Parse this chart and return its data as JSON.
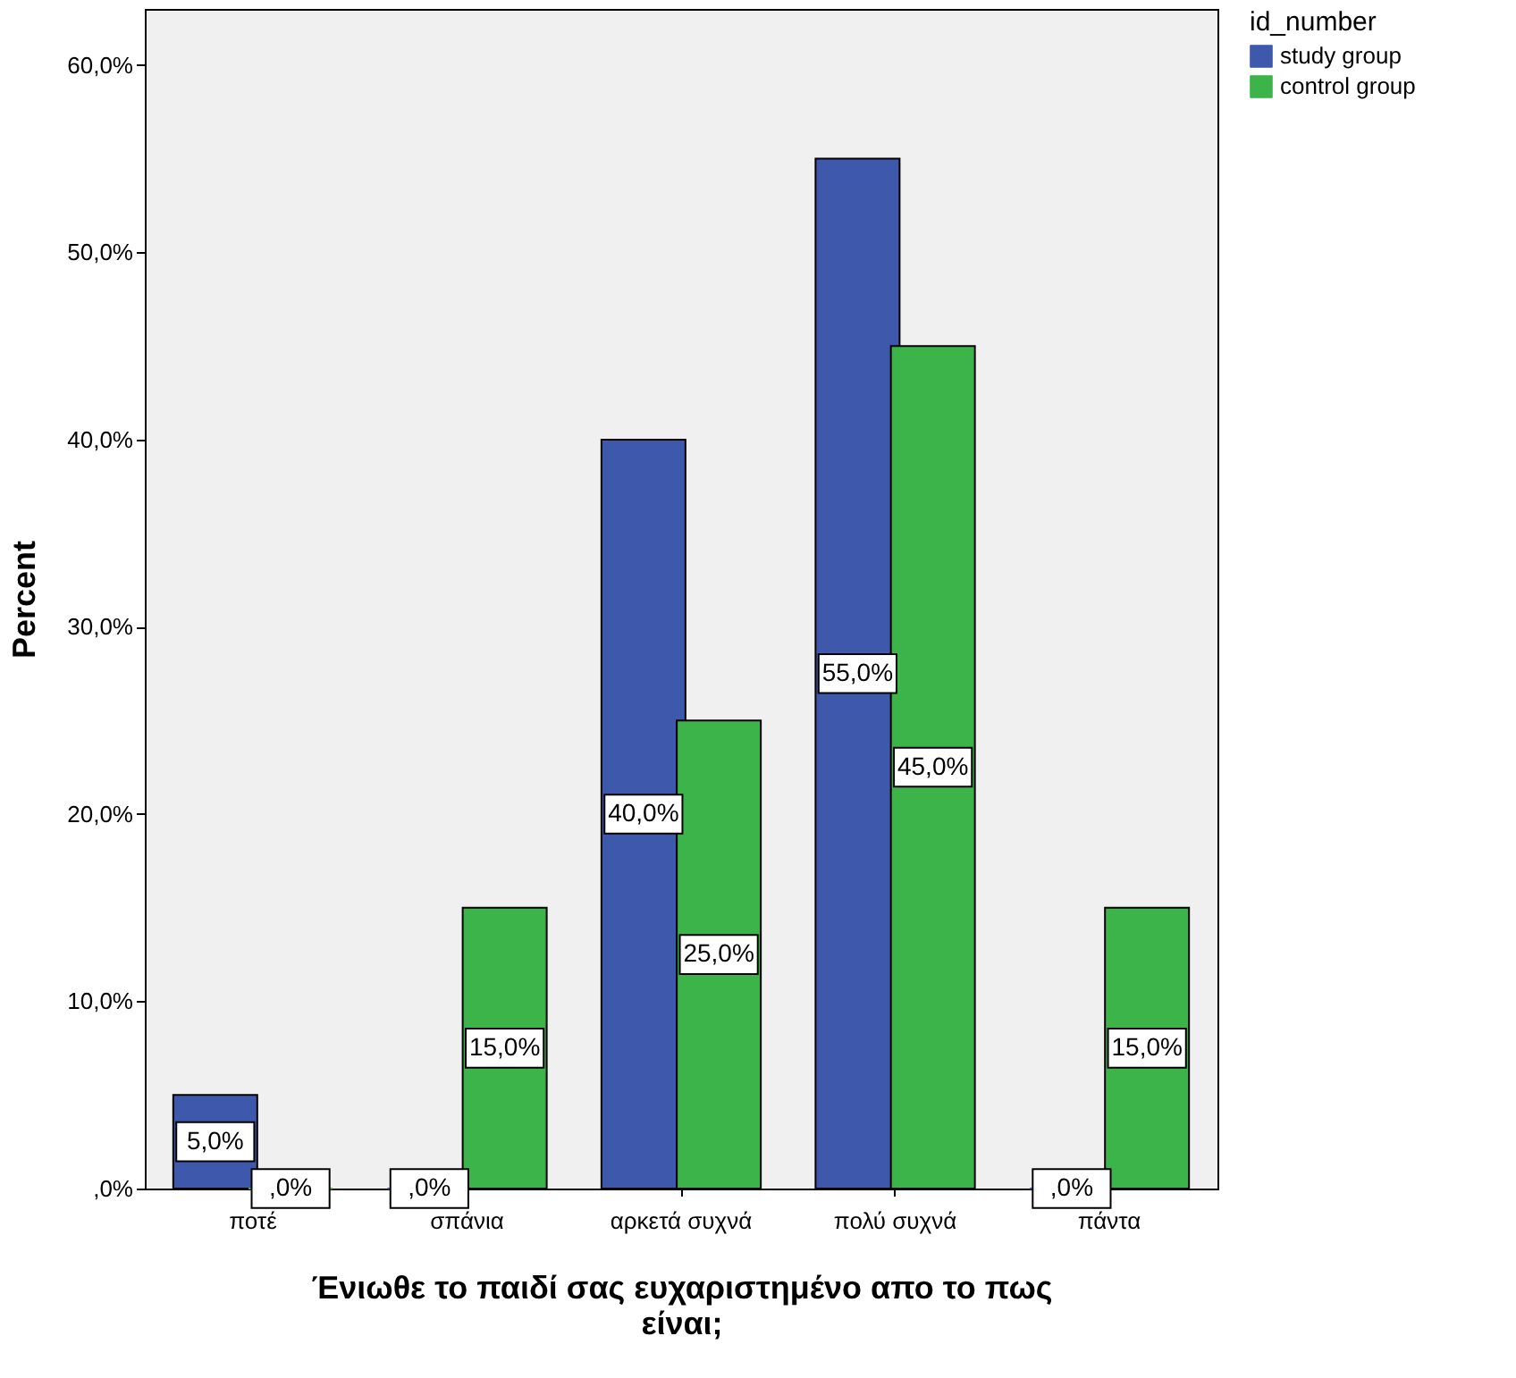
{
  "chart_data": {
    "type": "bar",
    "xlabel": "Ένιωθε το παιδί σας ευχαριστημένο απο το πως είναι;",
    "ylabel": "Percent",
    "legend_title": "id_number",
    "categories": [
      "ποτέ",
      "σπάνια",
      "αρκετά συχνά",
      "πολύ συχνά",
      "πάντα"
    ],
    "series": [
      {
        "name": "study group",
        "color": "#3e58ac",
        "values": [
          5,
          0,
          40,
          55,
          0
        ],
        "value_labels": [
          "5,0%",
          ",0%",
          "40,0%",
          "55,0%",
          ",0%"
        ]
      },
      {
        "name": "control group",
        "color": "#3cb44a",
        "values": [
          0,
          15,
          25,
          45,
          15
        ],
        "value_labels": [
          ",0%",
          "15,0%",
          "25,0%",
          "45,0%",
          "15,0%"
        ]
      }
    ],
    "ylim": [
      0,
      63
    ],
    "yticks": [
      {
        "value": 0,
        "label": ",0%"
      },
      {
        "value": 10,
        "label": "10,0%"
      },
      {
        "value": 20,
        "label": "20,0%"
      },
      {
        "value": 30,
        "label": "30,0%"
      },
      {
        "value": 40,
        "label": "40,0%"
      },
      {
        "value": 50,
        "label": "50,0%"
      },
      {
        "value": 60,
        "label": "60,0%"
      }
    ],
    "grid": false,
    "legend": "top right"
  }
}
